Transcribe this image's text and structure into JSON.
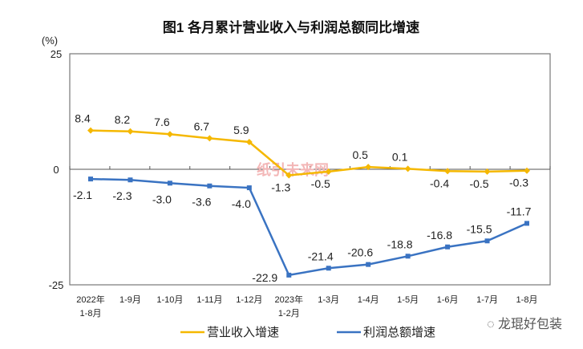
{
  "chart_data": {
    "type": "line",
    "title": "图1  各月累计营业收入与利润总额同比增速",
    "ylabel": "(%)",
    "ylim": [
      -25,
      25
    ],
    "yticks": [
      "25",
      "0",
      "-25"
    ],
    "categories": [
      [
        "2022年",
        "1-8月"
      ],
      [
        "1-9月"
      ],
      [
        "1-10月"
      ],
      [
        "1-11月"
      ],
      [
        "1-12月"
      ],
      [
        "2023年",
        "1-2月"
      ],
      [
        "1-3月"
      ],
      [
        "1-4月"
      ],
      [
        "1-5月"
      ],
      [
        "1-6月"
      ],
      [
        "1-7月"
      ],
      [
        "1-8月"
      ]
    ],
    "series": [
      {
        "name": "营业收入增速",
        "color": "#F5B800",
        "marker": "diamond",
        "values": [
          8.4,
          8.2,
          7.6,
          6.7,
          5.9,
          -1.3,
          -0.5,
          0.5,
          0.1,
          -0.4,
          -0.5,
          -0.3
        ]
      },
      {
        "name": "利润总额增速",
        "color": "#3A73C2",
        "marker": "square",
        "values": [
          -2.1,
          -2.3,
          -3.0,
          -3.6,
          -4.0,
          -22.9,
          -21.4,
          -20.6,
          -18.8,
          -16.8,
          -15.5,
          -11.7
        ]
      }
    ],
    "grid": false,
    "legend": "bottom"
  },
  "watermarks": [
    "纸引未来网",
    "龙琨好包装"
  ]
}
